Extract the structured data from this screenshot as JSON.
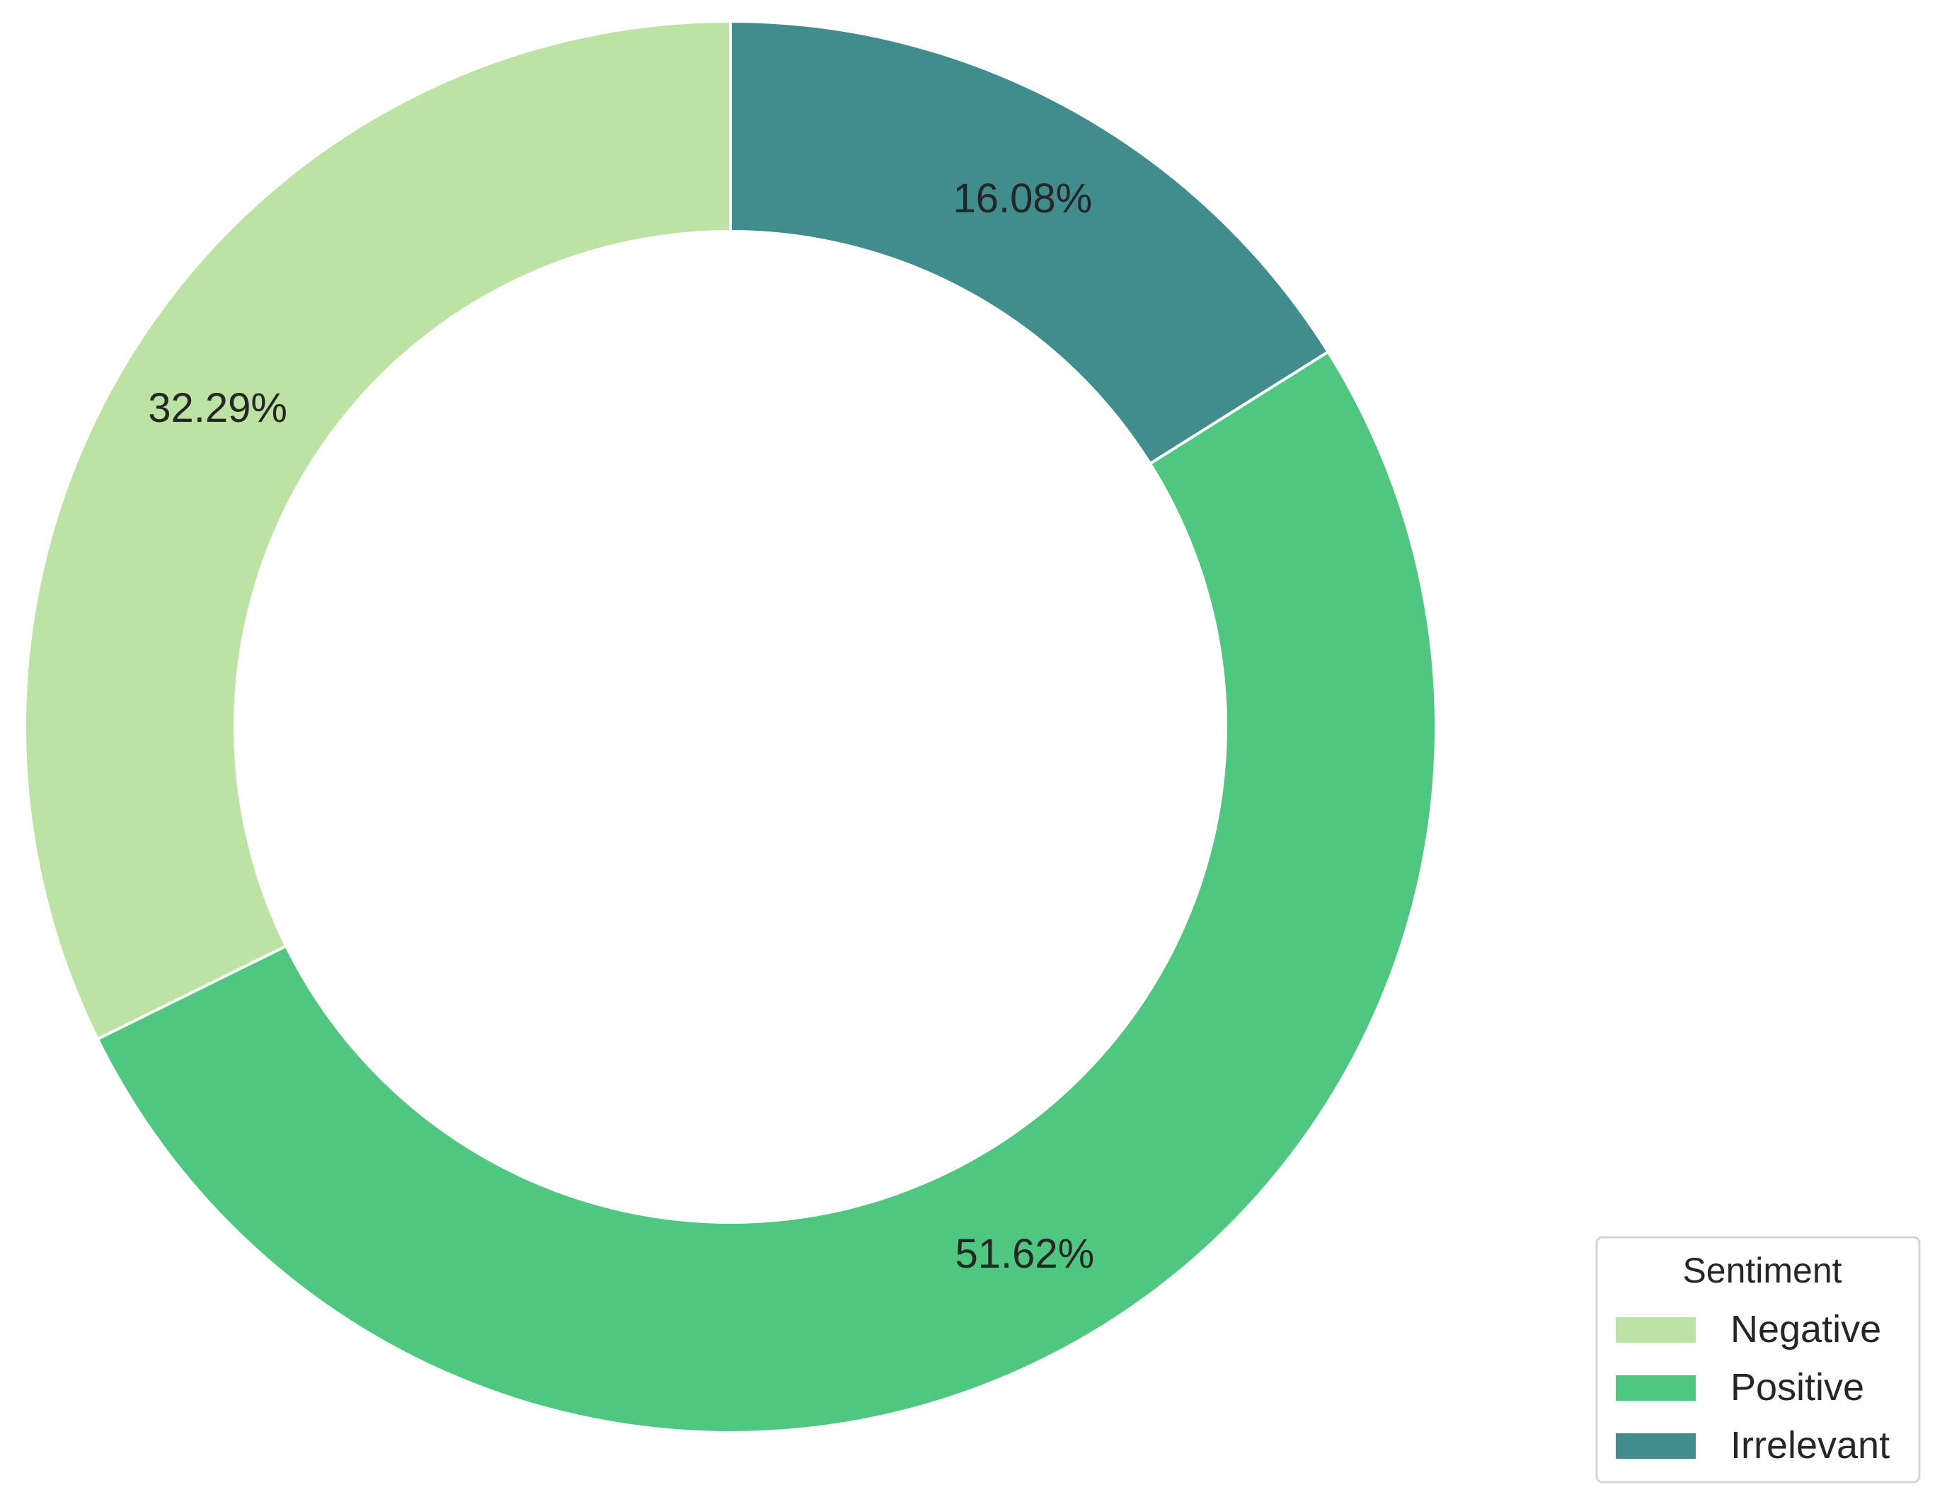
{
  "chart_data": {
    "type": "pie",
    "donut": true,
    "title": "",
    "categories": [
      "Negative",
      "Positive",
      "Irrelevant"
    ],
    "values": [
      32.29,
      51.62,
      16.08
    ],
    "value_labels": [
      "32.29%",
      "51.62%",
      "16.08%"
    ],
    "colors": [
      "#bce3a3",
      "#4fc780",
      "#418c8c"
    ],
    "start_angle_deg": 90,
    "direction": "counterclockwise",
    "legend": {
      "title": "Sentiment",
      "placement": "lower-right",
      "entries": [
        "Negative",
        "Positive",
        "Irrelevant"
      ]
    }
  }
}
